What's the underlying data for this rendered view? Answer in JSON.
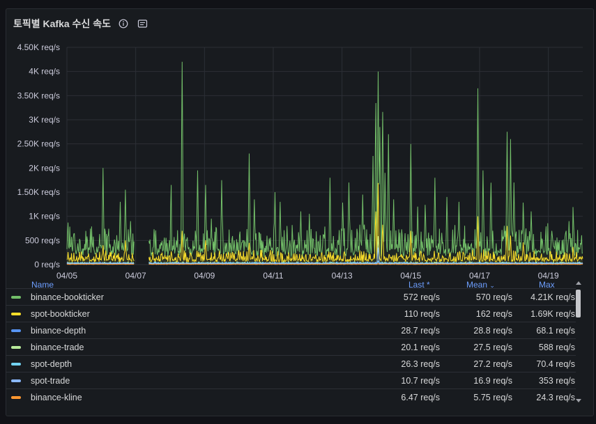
{
  "panel": {
    "title": "토픽별 Kafka 수신 속도",
    "icons": [
      "info-icon",
      "notes-icon"
    ]
  },
  "chart_data": {
    "type": "line",
    "ylim": [
      0,
      4500
    ],
    "yticks": [
      {
        "v": 0,
        "label": "0 req/s"
      },
      {
        "v": 500,
        "label": "500 req/s"
      },
      {
        "v": 1000,
        "label": "1K req/s"
      },
      {
        "v": 1500,
        "label": "1.50K req/s"
      },
      {
        "v": 2000,
        "label": "2K req/s"
      },
      {
        "v": 2500,
        "label": "2.50K req/s"
      },
      {
        "v": 3000,
        "label": "3K req/s"
      },
      {
        "v": 3500,
        "label": "3.50K req/s"
      },
      {
        "v": 4000,
        "label": "4K req/s"
      },
      {
        "v": 4500,
        "label": "4.50K req/s"
      }
    ],
    "xlim": [
      0,
      15
    ],
    "xticks": [
      {
        "d": 0,
        "label": "04/05"
      },
      {
        "d": 2,
        "label": "04/07"
      },
      {
        "d": 4,
        "label": "04/09"
      },
      {
        "d": 6,
        "label": "04/11"
      },
      {
        "d": 8,
        "label": "04/13"
      },
      {
        "d": 10,
        "label": "04/15"
      },
      {
        "d": 12,
        "label": "04/17"
      },
      {
        "d": 14,
        "label": "04/19"
      }
    ],
    "gap": [
      1.95,
      2.38
    ],
    "series": [
      {
        "name": "binance-bookticker",
        "color": "#73bf69",
        "base": 250,
        "noise": 180,
        "spikes": [
          [
            0.03,
            950
          ],
          [
            0.22,
            700
          ],
          [
            1.05,
            2000
          ],
          [
            1.2,
            600
          ],
          [
            1.55,
            1300
          ],
          [
            1.7,
            1550
          ],
          [
            1.85,
            900
          ],
          [
            3.03,
            1800
          ],
          [
            3.35,
            4200
          ],
          [
            3.8,
            1950
          ],
          [
            4.03,
            1800
          ],
          [
            4.2,
            950
          ],
          [
            4.5,
            1750
          ],
          [
            5.3,
            2300
          ],
          [
            5.45,
            1350
          ],
          [
            6.05,
            1500
          ],
          [
            6.2,
            1300
          ],
          [
            6.8,
            1100
          ],
          [
            7.05,
            1050
          ],
          [
            7.65,
            1800
          ],
          [
            8.02,
            1400
          ],
          [
            8.2,
            1700
          ],
          [
            8.6,
            1450
          ],
          [
            8.9,
            2250
          ],
          [
            8.98,
            3650
          ],
          [
            9.05,
            4000
          ],
          [
            9.1,
            2850
          ],
          [
            9.18,
            3450
          ],
          [
            9.25,
            1900
          ],
          [
            9.35,
            2700
          ],
          [
            9.5,
            1350
          ],
          [
            10.0,
            2500
          ],
          [
            10.2,
            1200
          ],
          [
            10.42,
            1350
          ],
          [
            10.7,
            1800
          ],
          [
            11.05,
            1400
          ],
          [
            11.4,
            1300
          ],
          [
            11.95,
            3650
          ],
          [
            12.1,
            1950
          ],
          [
            12.33,
            1850
          ],
          [
            12.8,
            2750
          ],
          [
            12.9,
            2600
          ],
          [
            13.0,
            1700
          ],
          [
            13.27,
            1400
          ],
          [
            13.5,
            1100
          ],
          [
            14.1,
            700
          ],
          [
            14.6,
            900
          ],
          [
            14.72,
            1300
          ]
        ],
        "legend": {
          "last": "572 req/s",
          "mean": "570 req/s",
          "max": "4.21K req/s"
        }
      },
      {
        "name": "spot-bookticker",
        "color": "#fade2a",
        "base": 80,
        "noise": 70,
        "spikes": [
          [
            1.05,
            400
          ],
          [
            1.7,
            500
          ],
          [
            3.35,
            700
          ],
          [
            4.03,
            550
          ],
          [
            5.3,
            450
          ],
          [
            8.98,
            1200
          ],
          [
            9.05,
            1690
          ],
          [
            9.18,
            900
          ],
          [
            10.0,
            700
          ],
          [
            11.95,
            1000
          ],
          [
            12.8,
            800
          ],
          [
            12.9,
            600
          ],
          [
            13.27,
            500
          ],
          [
            14.72,
            400
          ]
        ],
        "legend": {
          "last": "110 req/s",
          "mean": "162 req/s",
          "max": "1.69K req/s"
        }
      },
      {
        "name": "binance-depth",
        "color": "#5794f2",
        "base": 25,
        "noise": 8,
        "spikes": [
          [
            9.05,
            68
          ]
        ],
        "legend": {
          "last": "28.7 req/s",
          "mean": "28.8 req/s",
          "max": "68.1 req/s"
        }
      },
      {
        "name": "binance-trade",
        "color": "#b8eb9b",
        "base": 22,
        "noise": 10,
        "spikes": [
          [
            9.05,
            588
          ]
        ],
        "legend": {
          "last": "20.1 req/s",
          "mean": "27.5 req/s",
          "max": "588 req/s"
        }
      },
      {
        "name": "spot-depth",
        "color": "#73d3f2",
        "base": 25,
        "noise": 8,
        "spikes": [
          [
            9.05,
            70
          ]
        ],
        "legend": {
          "last": "26.3 req/s",
          "mean": "27.2 req/s",
          "max": "70.4 req/s"
        }
      },
      {
        "name": "spot-trade",
        "color": "#8ab8ff",
        "base": 14,
        "noise": 8,
        "spikes": [
          [
            9.05,
            353
          ]
        ],
        "legend": {
          "last": "10.7 req/s",
          "mean": "16.9 req/s",
          "max": "353 req/s"
        }
      },
      {
        "name": "binance-kline",
        "color": "#ff9830",
        "base": 5,
        "noise": 3,
        "spikes": [
          [
            9.05,
            24
          ]
        ],
        "legend": {
          "last": "6.47 req/s",
          "mean": "5.75 req/s",
          "max": "24.3 req/s"
        }
      }
    ]
  },
  "legend": {
    "col_name": "Name",
    "col_last": "Last *",
    "col_mean": "Mean",
    "col_mean_sort": "⌄",
    "col_max": "Max"
  }
}
